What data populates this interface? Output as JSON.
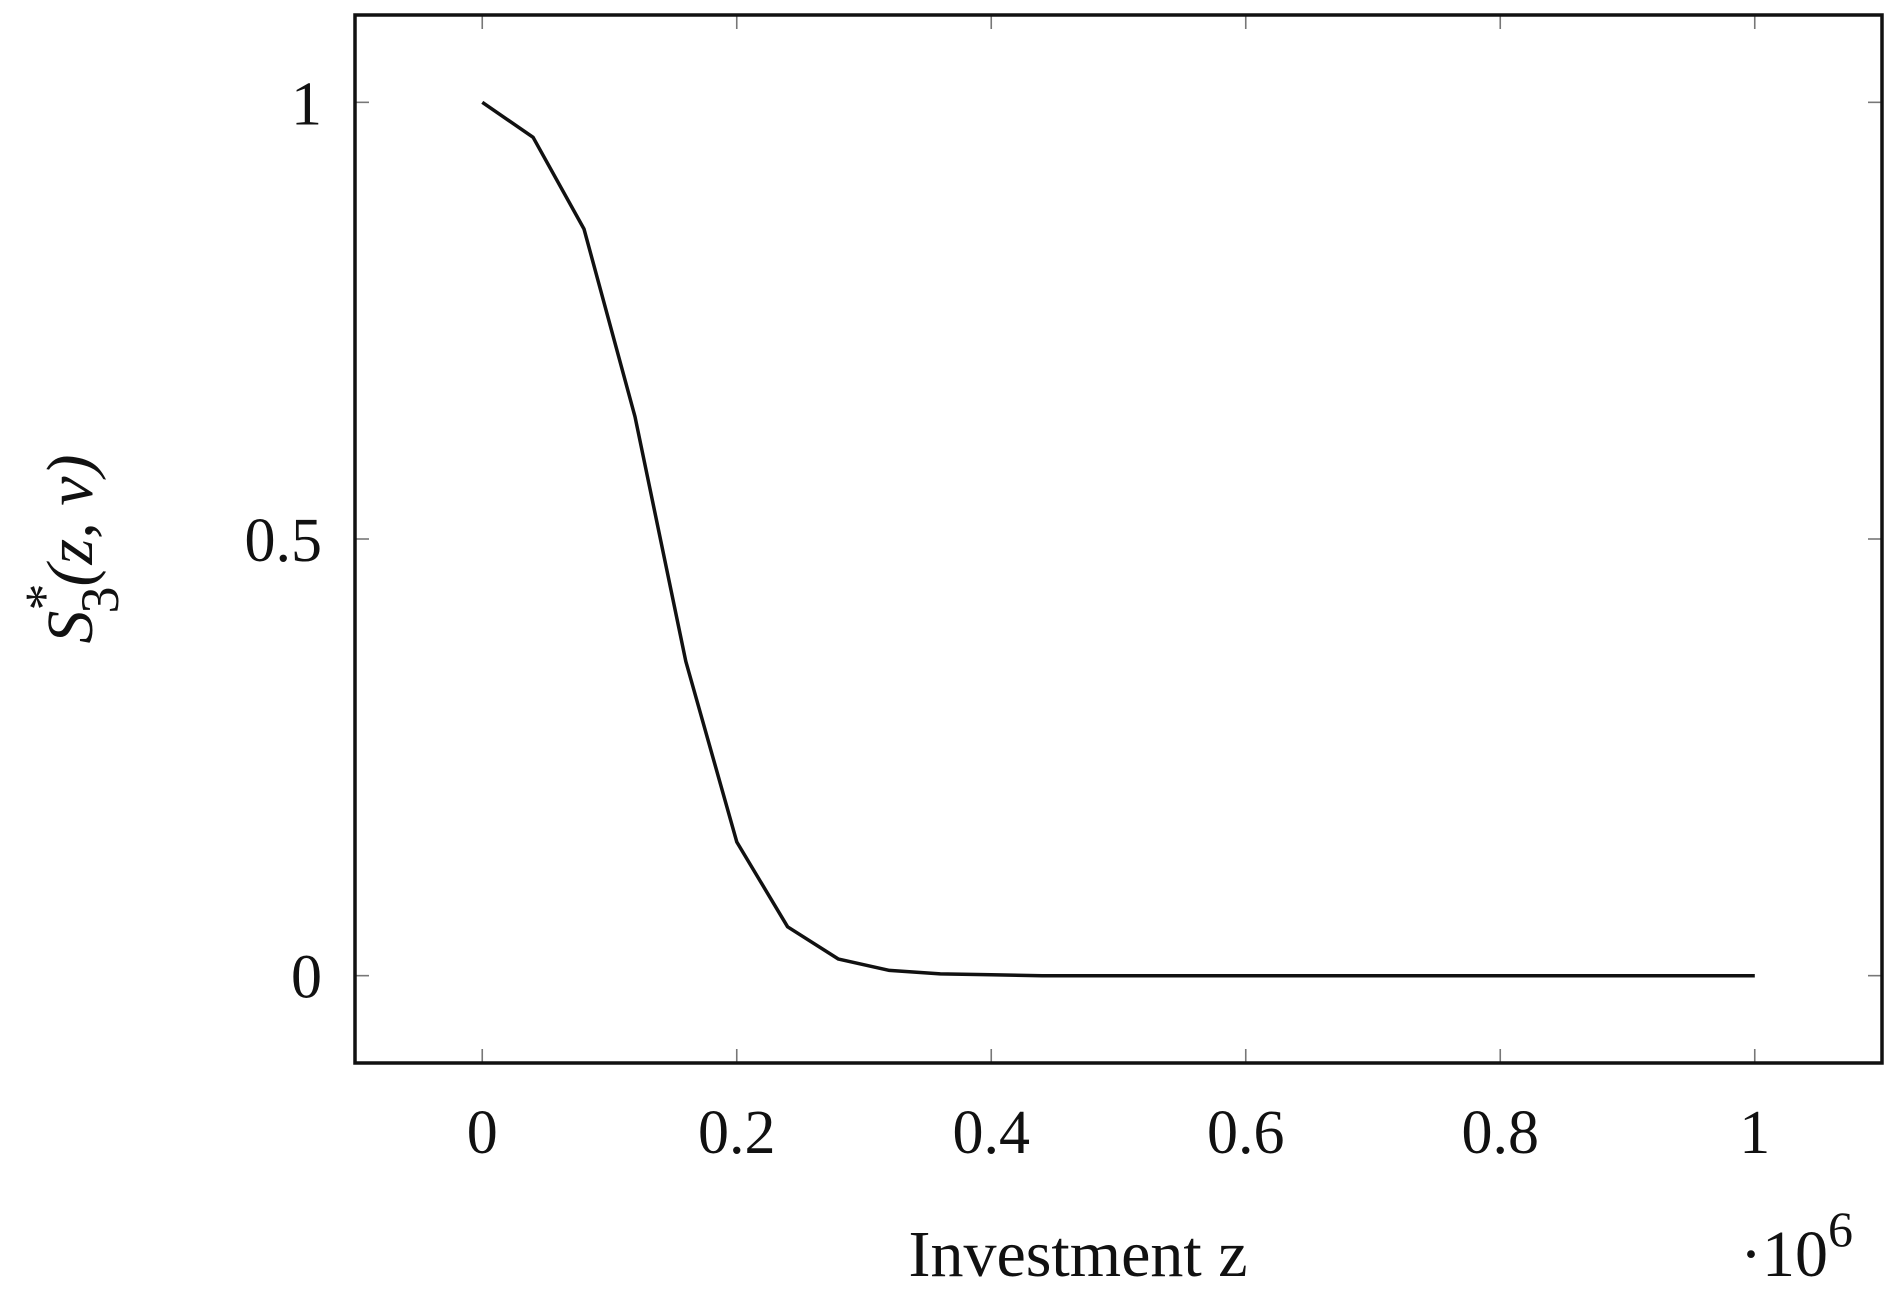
{
  "chart_data": {
    "type": "line",
    "xlabel": "Investment z",
    "ylabel": "S*3(z, v)",
    "ylabel_parts": {
      "base": "S",
      "sup": "*",
      "sub": "3",
      "args": "(z, v)"
    },
    "x_multiplier_label": "·10",
    "x_multiplier_exp": "6",
    "xlim": [
      -0.1,
      1.1
    ],
    "ylim": [
      -0.1,
      1.1
    ],
    "xticks": [
      0,
      0.2,
      0.4,
      0.6,
      0.8,
      1
    ],
    "xtick_labels": [
      "0",
      "0.2",
      "0.4",
      "0.6",
      "0.8",
      "1"
    ],
    "yticks": [
      0,
      0.5,
      1
    ],
    "ytick_labels": [
      "0",
      "0.5",
      "1"
    ],
    "grid": false,
    "series": [
      {
        "color": "#111111",
        "x": [
          0,
          0.04,
          0.08,
          0.12,
          0.16,
          0.2,
          0.24,
          0.28,
          0.32,
          0.36,
          0.4,
          0.44,
          0.48,
          0.6,
          0.8,
          1.0
        ],
        "y": [
          1.0,
          0.96,
          0.855,
          0.64,
          0.36,
          0.153,
          0.056,
          0.019,
          0.006,
          0.002,
          0.001,
          0.0,
          0.0,
          0.0,
          0.0,
          0.0
        ]
      }
    ]
  }
}
